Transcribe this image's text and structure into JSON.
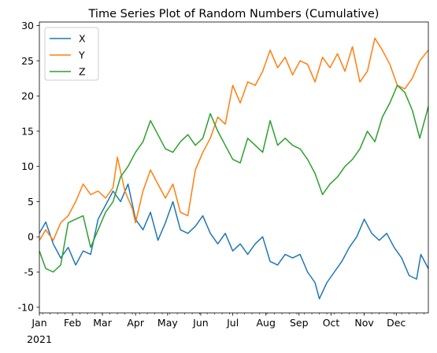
{
  "chart_data": {
    "type": "line",
    "title": "Time Series Plot of Random Numbers (Cumulative)",
    "xlabel": "",
    "ylabel": "",
    "x_axis": {
      "type": "date",
      "range": [
        "2021-01-01",
        "2021-12-31"
      ],
      "tick_labels": [
        "Jan",
        "Feb",
        "Mar",
        "Apr",
        "May",
        "Jun",
        "Jul",
        "Aug",
        "Sep",
        "Oct",
        "Nov",
        "Dec"
      ],
      "year_label": "2021"
    },
    "ylim": [
      -10.8,
      30.5
    ],
    "y_ticks": [
      -10,
      -5,
      0,
      5,
      10,
      15,
      20,
      25,
      30
    ],
    "grid": false,
    "legend_position": "top-left",
    "series": [
      {
        "name": "X",
        "color": "#1f77b4",
        "points": [
          [
            "2021-01-01",
            0.5
          ],
          [
            "2021-01-07",
            2.1
          ],
          [
            "2021-01-14",
            -1.0
          ],
          [
            "2021-01-21",
            -3.0
          ],
          [
            "2021-01-28",
            -1.5
          ],
          [
            "2021-02-04",
            -4.0
          ],
          [
            "2021-02-11",
            -2.0
          ],
          [
            "2021-02-18",
            -2.5
          ],
          [
            "2021-02-25",
            2.5
          ],
          [
            "2021-03-04",
            4.5
          ],
          [
            "2021-03-11",
            6.5
          ],
          [
            "2021-03-18",
            5.0
          ],
          [
            "2021-03-25",
            7.5
          ],
          [
            "2021-04-01",
            2.5
          ],
          [
            "2021-04-08",
            1.0
          ],
          [
            "2021-04-15",
            3.5
          ],
          [
            "2021-04-22",
            -0.5
          ],
          [
            "2021-04-29",
            2.0
          ],
          [
            "2021-05-06",
            5.0
          ],
          [
            "2021-05-13",
            1.0
          ],
          [
            "2021-05-20",
            0.5
          ],
          [
            "2021-05-27",
            1.5
          ],
          [
            "2021-06-03",
            3.0
          ],
          [
            "2021-06-10",
            0.5
          ],
          [
            "2021-06-17",
            -1.0
          ],
          [
            "2021-06-24",
            0.5
          ],
          [
            "2021-07-01",
            -2.0
          ],
          [
            "2021-07-08",
            -1.0
          ],
          [
            "2021-07-15",
            -2.5
          ],
          [
            "2021-07-22",
            -1.0
          ],
          [
            "2021-07-29",
            0.0
          ],
          [
            "2021-08-05",
            -3.5
          ],
          [
            "2021-08-12",
            -4.0
          ],
          [
            "2021-08-19",
            -2.5
          ],
          [
            "2021-08-26",
            -3.0
          ],
          [
            "2021-09-02",
            -2.5
          ],
          [
            "2021-09-09",
            -5.0
          ],
          [
            "2021-09-16",
            -6.5
          ],
          [
            "2021-09-20",
            -8.8
          ],
          [
            "2021-09-27",
            -6.5
          ],
          [
            "2021-10-04",
            -5.0
          ],
          [
            "2021-10-11",
            -3.5
          ],
          [
            "2021-10-18",
            -1.5
          ],
          [
            "2021-10-25",
            0.0
          ],
          [
            "2021-11-01",
            2.5
          ],
          [
            "2021-11-08",
            0.5
          ],
          [
            "2021-11-15",
            -0.5
          ],
          [
            "2021-11-22",
            0.5
          ],
          [
            "2021-11-29",
            -1.5
          ],
          [
            "2021-12-06",
            -3.0
          ],
          [
            "2021-12-13",
            -5.5
          ],
          [
            "2021-12-20",
            -6.0
          ],
          [
            "2021-12-24",
            -2.5
          ],
          [
            "2021-12-31",
            -4.5
          ]
        ]
      },
      {
        "name": "Y",
        "color": "#ff7f0e",
        "points": [
          [
            "2021-01-01",
            -0.5
          ],
          [
            "2021-01-07",
            1.0
          ],
          [
            "2021-01-14",
            -0.5
          ],
          [
            "2021-01-21",
            2.0
          ],
          [
            "2021-01-28",
            3.0
          ],
          [
            "2021-02-04",
            5.0
          ],
          [
            "2021-02-11",
            7.5
          ],
          [
            "2021-02-18",
            6.0
          ],
          [
            "2021-02-25",
            6.5
          ],
          [
            "2021-03-04",
            5.5
          ],
          [
            "2021-03-11",
            7.0
          ],
          [
            "2021-03-15",
            11.3
          ],
          [
            "2021-03-22",
            6.5
          ],
          [
            "2021-03-29",
            4.0
          ],
          [
            "2021-04-01",
            2.0
          ],
          [
            "2021-04-08",
            6.5
          ],
          [
            "2021-04-15",
            9.5
          ],
          [
            "2021-04-22",
            7.5
          ],
          [
            "2021-04-29",
            5.5
          ],
          [
            "2021-05-06",
            7.5
          ],
          [
            "2021-05-13",
            3.5
          ],
          [
            "2021-05-20",
            3.0
          ],
          [
            "2021-05-27",
            9.5
          ],
          [
            "2021-06-03",
            12.0
          ],
          [
            "2021-06-10",
            14.0
          ],
          [
            "2021-06-17",
            17.0
          ],
          [
            "2021-06-24",
            16.0
          ],
          [
            "2021-07-01",
            21.5
          ],
          [
            "2021-07-08",
            19.0
          ],
          [
            "2021-07-15",
            22.0
          ],
          [
            "2021-07-22",
            21.5
          ],
          [
            "2021-07-29",
            23.5
          ],
          [
            "2021-08-05",
            26.5
          ],
          [
            "2021-08-12",
            24.0
          ],
          [
            "2021-08-19",
            25.5
          ],
          [
            "2021-08-26",
            23.0
          ],
          [
            "2021-09-02",
            25.0
          ],
          [
            "2021-09-09",
            24.5
          ],
          [
            "2021-09-16",
            22.0
          ],
          [
            "2021-09-23",
            25.5
          ],
          [
            "2021-09-30",
            24.0
          ],
          [
            "2021-10-07",
            26.0
          ],
          [
            "2021-10-14",
            23.5
          ],
          [
            "2021-10-21",
            27.0
          ],
          [
            "2021-10-28",
            22.0
          ],
          [
            "2021-11-04",
            23.5
          ],
          [
            "2021-11-11",
            28.2
          ],
          [
            "2021-11-18",
            26.5
          ],
          [
            "2021-11-25",
            24.5
          ],
          [
            "2021-12-02",
            21.5
          ],
          [
            "2021-12-09",
            21.0
          ],
          [
            "2021-12-16",
            22.5
          ],
          [
            "2021-12-23",
            25.0
          ],
          [
            "2021-12-31",
            26.5
          ]
        ]
      },
      {
        "name": "Z",
        "color": "#2ca02c",
        "points": [
          [
            "2021-01-01",
            -2.0
          ],
          [
            "2021-01-07",
            -4.5
          ],
          [
            "2021-01-14",
            -5.0
          ],
          [
            "2021-01-21",
            -4.0
          ],
          [
            "2021-01-28",
            2.0
          ],
          [
            "2021-02-04",
            2.5
          ],
          [
            "2021-02-11",
            3.0
          ],
          [
            "2021-02-18",
            -1.5
          ],
          [
            "2021-02-25",
            1.0
          ],
          [
            "2021-03-04",
            3.5
          ],
          [
            "2021-03-11",
            5.0
          ],
          [
            "2021-03-18",
            8.5
          ],
          [
            "2021-03-25",
            10.0
          ],
          [
            "2021-04-01",
            12.0
          ],
          [
            "2021-04-08",
            13.5
          ],
          [
            "2021-04-15",
            16.5
          ],
          [
            "2021-04-22",
            14.5
          ],
          [
            "2021-04-29",
            12.5
          ],
          [
            "2021-05-06",
            12.0
          ],
          [
            "2021-05-13",
            13.5
          ],
          [
            "2021-05-20",
            14.5
          ],
          [
            "2021-05-27",
            13.0
          ],
          [
            "2021-06-03",
            14.0
          ],
          [
            "2021-06-10",
            17.5
          ],
          [
            "2021-06-17",
            15.0
          ],
          [
            "2021-06-24",
            13.0
          ],
          [
            "2021-07-01",
            11.0
          ],
          [
            "2021-07-08",
            10.5
          ],
          [
            "2021-07-15",
            14.0
          ],
          [
            "2021-07-22",
            13.0
          ],
          [
            "2021-07-29",
            12.0
          ],
          [
            "2021-08-05",
            16.5
          ],
          [
            "2021-08-12",
            13.0
          ],
          [
            "2021-08-19",
            14.0
          ],
          [
            "2021-08-26",
            13.0
          ],
          [
            "2021-09-02",
            12.5
          ],
          [
            "2021-09-09",
            11.0
          ],
          [
            "2021-09-16",
            9.0
          ],
          [
            "2021-09-23",
            6.0
          ],
          [
            "2021-09-30",
            7.5
          ],
          [
            "2021-10-07",
            8.5
          ],
          [
            "2021-10-14",
            10.0
          ],
          [
            "2021-10-21",
            11.0
          ],
          [
            "2021-10-28",
            12.5
          ],
          [
            "2021-11-04",
            15.0
          ],
          [
            "2021-11-11",
            13.5
          ],
          [
            "2021-11-18",
            17.0
          ],
          [
            "2021-11-25",
            19.0
          ],
          [
            "2021-12-02",
            21.5
          ],
          [
            "2021-12-09",
            20.5
          ],
          [
            "2021-12-16",
            18.0
          ],
          [
            "2021-12-23",
            14.0
          ],
          [
            "2021-12-31",
            18.5
          ]
        ]
      }
    ]
  }
}
